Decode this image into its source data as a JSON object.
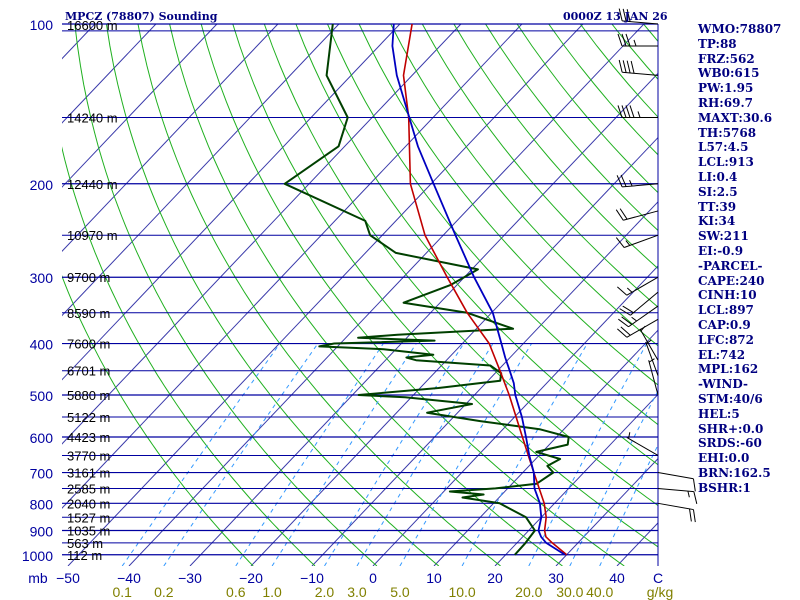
{
  "header": {
    "station_title": "MPCZ (78807) Sounding",
    "time_label": "0000Z 13 JAN 26"
  },
  "stats": [
    "WMO:78807",
    "TP:88",
    "FRZ:562",
    "WB0:615",
    "PW:1.95",
    "RH:69.7",
    "MAXT:30.6",
    "TH:5768",
    "L57:4.5",
    "LCL:913",
    "LI:0.4",
    "SI:2.5",
    "TT:39",
    "KI:34",
    "SW:211",
    "EI:-0.9",
    "-PARCEL-",
    "CAPE:240",
    "CINH:10",
    "LCL:897",
    "CAP:0.9",
    "LFC:872",
    "EL:742",
    "MPL:162",
    "-WIND-",
    "STM:40/6",
    "HEL:5",
    "SHR+:0.0",
    "SRDS:-60",
    "EHI:0.0",
    "BRN:162.5",
    "BSHR:1"
  ],
  "colors": {
    "isobar": "#0000a0",
    "isotherm": "#3a3aaa",
    "dry_adiabat": "#20b020",
    "mixing_ratio": "#3399ff",
    "temperature": "#0000c0",
    "dewpoint": "#004000",
    "parcel": "#c00000",
    "wind": "#000000",
    "axis_text": "#0000a0",
    "mr_text": "#808000"
  },
  "chart_data": {
    "type": "line",
    "title": "MPCZ (78807) Sounding",
    "xlabel": "C",
    "ylabel": "mb",
    "pressure_levels": [
      100,
      200,
      300,
      400,
      500,
      600,
      700,
      800,
      900,
      1000
    ],
    "pressure_labels": [
      "100",
      "200",
      "300",
      "400",
      "500",
      "600",
      "700",
      "800",
      "900",
      "1000"
    ],
    "temperature_ticks": [
      -50,
      -40,
      -30,
      -20,
      -10,
      0,
      10,
      20,
      30,
      40
    ],
    "temperature_tick_labels": [
      "−50",
      "−40",
      "−30",
      "−20",
      "−10",
      "0",
      "10",
      "20",
      "30",
      "40"
    ],
    "temperature_unit": "C",
    "mixing_ratio_labels": [
      "0.1",
      "0.2",
      "0.6",
      "1.0",
      "2.0",
      "3.0",
      "5.0",
      "10.0",
      "20.0",
      "30.0",
      "40.0"
    ],
    "mixing_ratio_unit": "g/kg",
    "mixing_ratio_values": [
      0.1,
      0.2,
      0.6,
      1.0,
      2.0,
      3.0,
      5.0,
      10.0,
      20.0,
      30.0,
      40.0
    ],
    "height_labels": [
      {
        "p": 103,
        "label": "16600 m"
      },
      {
        "p": 150,
        "label": "14240 m"
      },
      {
        "p": 200,
        "label": "12440 m"
      },
      {
        "p": 250,
        "label": "10970 m"
      },
      {
        "p": 300,
        "label": "9700 m"
      },
      {
        "p": 350,
        "label": "8590 m"
      },
      {
        "p": 400,
        "label": "7600 m"
      },
      {
        "p": 450,
        "label": "6701 m"
      },
      {
        "p": 500,
        "label": "5880 m"
      },
      {
        "p": 550,
        "label": "5122 m"
      },
      {
        "p": 600,
        "label": "4423 m"
      },
      {
        "p": 650,
        "label": "3770 m"
      },
      {
        "p": 700,
        "label": "3161 m"
      },
      {
        "p": 750,
        "label": "2585 m"
      },
      {
        "p": 800,
        "label": "2040 m"
      },
      {
        "p": 850,
        "label": "1527 m"
      },
      {
        "p": 900,
        "label": "1035 m"
      },
      {
        "p": 950,
        "label": "563 m"
      },
      {
        "p": 1000,
        "label": "112 m"
      }
    ],
    "series": [
      {
        "key": "temperature",
        "points": [
          [
            1000,
            29.7
          ],
          [
            950,
            24.8
          ],
          [
            925,
            23.0
          ],
          [
            900,
            21.6
          ],
          [
            850,
            20.0
          ],
          [
            800,
            17.6
          ],
          [
            750,
            14.4
          ],
          [
            700,
            11.8
          ],
          [
            650,
            8.4
          ],
          [
            600,
            5.0
          ],
          [
            550,
            1.2
          ],
          [
            500,
            -3.3
          ],
          [
            475,
            -5.4
          ],
          [
            450,
            -8.0
          ],
          [
            425,
            -10.8
          ],
          [
            400,
            -13.6
          ],
          [
            350,
            -19.8
          ],
          [
            300,
            -28.4
          ],
          [
            250,
            -38.0
          ],
          [
            200,
            -49.6
          ],
          [
            170,
            -58.0
          ],
          [
            150,
            -63.9
          ],
          [
            125,
            -72.5
          ],
          [
            110,
            -77.8
          ],
          [
            100,
            -81.0
          ]
        ]
      },
      {
        "key": "dewpoint",
        "points": [
          [
            1000,
            21.5
          ],
          [
            950,
            21.4
          ],
          [
            900,
            21.0
          ],
          [
            850,
            17.5
          ],
          [
            800,
            11.0
          ],
          [
            780,
            4.0
          ],
          [
            770,
            7.0
          ],
          [
            760,
            1.0
          ],
          [
            750,
            8.0
          ],
          [
            735,
            14.0
          ],
          [
            700,
            15.0
          ],
          [
            680,
            13.0
          ],
          [
            660,
            14.0
          ],
          [
            640,
            9.0
          ],
          [
            620,
            13.0
          ],
          [
            600,
            12.0
          ],
          [
            580,
            6.0
          ],
          [
            560,
            -5.0
          ],
          [
            540,
            -15.0
          ],
          [
            520,
            -9.0
          ],
          [
            505,
            -21.0
          ],
          [
            500,
            -29.0
          ],
          [
            485,
            -17.0
          ],
          [
            470,
            -8.0
          ],
          [
            455,
            -9.0
          ],
          [
            440,
            -12.0
          ],
          [
            430,
            -25.0
          ],
          [
            425,
            -27.0
          ],
          [
            420,
            -23.0
          ],
          [
            410,
            -32.0
          ],
          [
            405,
            -43.0
          ],
          [
            400,
            -41.0
          ],
          [
            395,
            -25.0
          ],
          [
            390,
            -38.0
          ],
          [
            385,
            -32.0
          ],
          [
            375,
            -14.0
          ],
          [
            350,
            -24.0
          ],
          [
            335,
            -36.0
          ],
          [
            310,
            -31.0
          ],
          [
            290,
            -29.0
          ],
          [
            270,
            -45.0
          ],
          [
            250,
            -52.0
          ],
          [
            235,
            -55.0
          ],
          [
            200,
            -74.0
          ],
          [
            170,
            -71.0
          ],
          [
            150,
            -74.0
          ],
          [
            125,
            -84.0
          ],
          [
            100,
            -91.0
          ]
        ]
      },
      {
        "key": "parcel",
        "points": [
          [
            1000,
            30.0
          ],
          [
            950,
            25.8
          ],
          [
            925,
            23.8
          ],
          [
            900,
            22.6
          ],
          [
            850,
            20.8
          ],
          [
            800,
            18.3
          ],
          [
            700,
            11.8
          ],
          [
            600,
            4.4
          ],
          [
            500,
            -4.3
          ],
          [
            450,
            -9.6
          ],
          [
            400,
            -15.6
          ],
          [
            350,
            -24.0
          ],
          [
            300,
            -32.8
          ],
          [
            250,
            -43.0
          ],
          [
            200,
            -53.4
          ],
          [
            150,
            -64.0
          ],
          [
            125,
            -71.4
          ],
          [
            100,
            -78.0
          ]
        ]
      }
    ],
    "wind_barbs": [
      {
        "p": 100,
        "dir": 275,
        "spd": 30
      },
      {
        "p": 110,
        "dir": 270,
        "spd": 35
      },
      {
        "p": 125,
        "dir": 275,
        "spd": 40
      },
      {
        "p": 150,
        "dir": 270,
        "spd": 45
      },
      {
        "p": 200,
        "dir": 265,
        "spd": 25
      },
      {
        "p": 225,
        "dir": 255,
        "spd": 20
      },
      {
        "p": 250,
        "dir": 250,
        "spd": 15
      },
      {
        "p": 300,
        "dir": 240,
        "spd": 15
      },
      {
        "p": 320,
        "dir": 230,
        "spd": 20
      },
      {
        "p": 340,
        "dir": 235,
        "spd": 25
      },
      {
        "p": 360,
        "dir": 240,
        "spd": 20
      },
      {
        "p": 430,
        "dir": 330,
        "spd": 5
      },
      {
        "p": 460,
        "dir": 340,
        "spd": 5
      },
      {
        "p": 500,
        "dir": 345,
        "spd": 5
      },
      {
        "p": 650,
        "dir": 300,
        "spd": 5
      },
      {
        "p": 700,
        "dir": 100,
        "spd": 10
      },
      {
        "p": 750,
        "dir": 95,
        "spd": 15
      },
      {
        "p": 800,
        "dir": 100,
        "spd": 20
      }
    ]
  }
}
